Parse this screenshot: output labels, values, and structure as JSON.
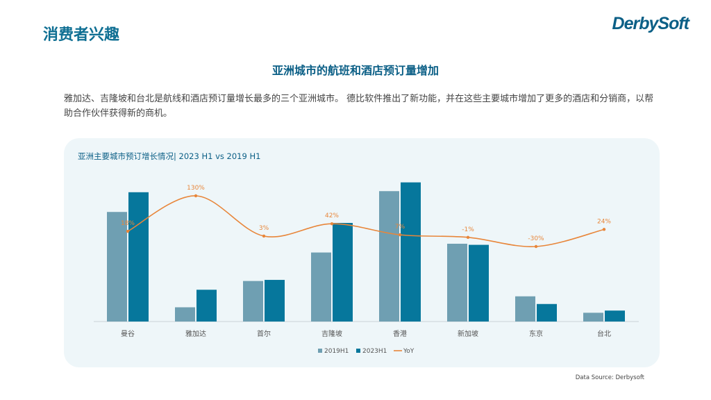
{
  "header": {
    "title": "消费者兴趣",
    "logo_text": "DerbySoft"
  },
  "subtitle": "亚洲城市的航班和酒店预订量增加",
  "description": "雅加达、吉隆坡和台北是航线和酒店预订量增长最多的三个亚洲城市。 德比软件推出了新功能，并在这些主要城市增加了更多的酒店和分销商，以帮助合作伙伴获得新的商机。",
  "footer": {
    "source": "Data Source: Derbysoft"
  },
  "colors": {
    "accent": "#0f6f93",
    "bar_2019": "#6f9fb2",
    "bar_2023": "#06779c",
    "yoy_line": "#e8863a",
    "card_bg": "#eef6f9"
  },
  "chart_data": {
    "type": "bar",
    "title": "亚洲主要城市预订增长情况| 2023 H1 vs 2019 H1",
    "categories": [
      "曼谷",
      "雅加达",
      "首尔",
      "吉隆坡",
      "香港",
      "新加坡",
      "东京",
      "台北"
    ],
    "series": [
      {
        "name": "2019H1",
        "type": "bar",
        "values": [
          100,
          13,
          37,
          63,
          119,
          71,
          23,
          8
        ]
      },
      {
        "name": "2023H1",
        "type": "bar",
        "values": [
          118,
          29,
          38,
          90,
          127,
          70,
          16,
          10
        ]
      },
      {
        "name": "YoY",
        "type": "line",
        "values": [
          18,
          130,
          3,
          42,
          7,
          -1,
          -30,
          24
        ],
        "labels": [
          "18%",
          "130%",
          "3%",
          "42%",
          "7%",
          "-1%",
          "-30%",
          "24%"
        ]
      }
    ],
    "bar_ylim": [
      0,
      135
    ],
    "yoy_ylim": [
      -60,
      160
    ],
    "legend_position": "bottom",
    "grid": false
  }
}
